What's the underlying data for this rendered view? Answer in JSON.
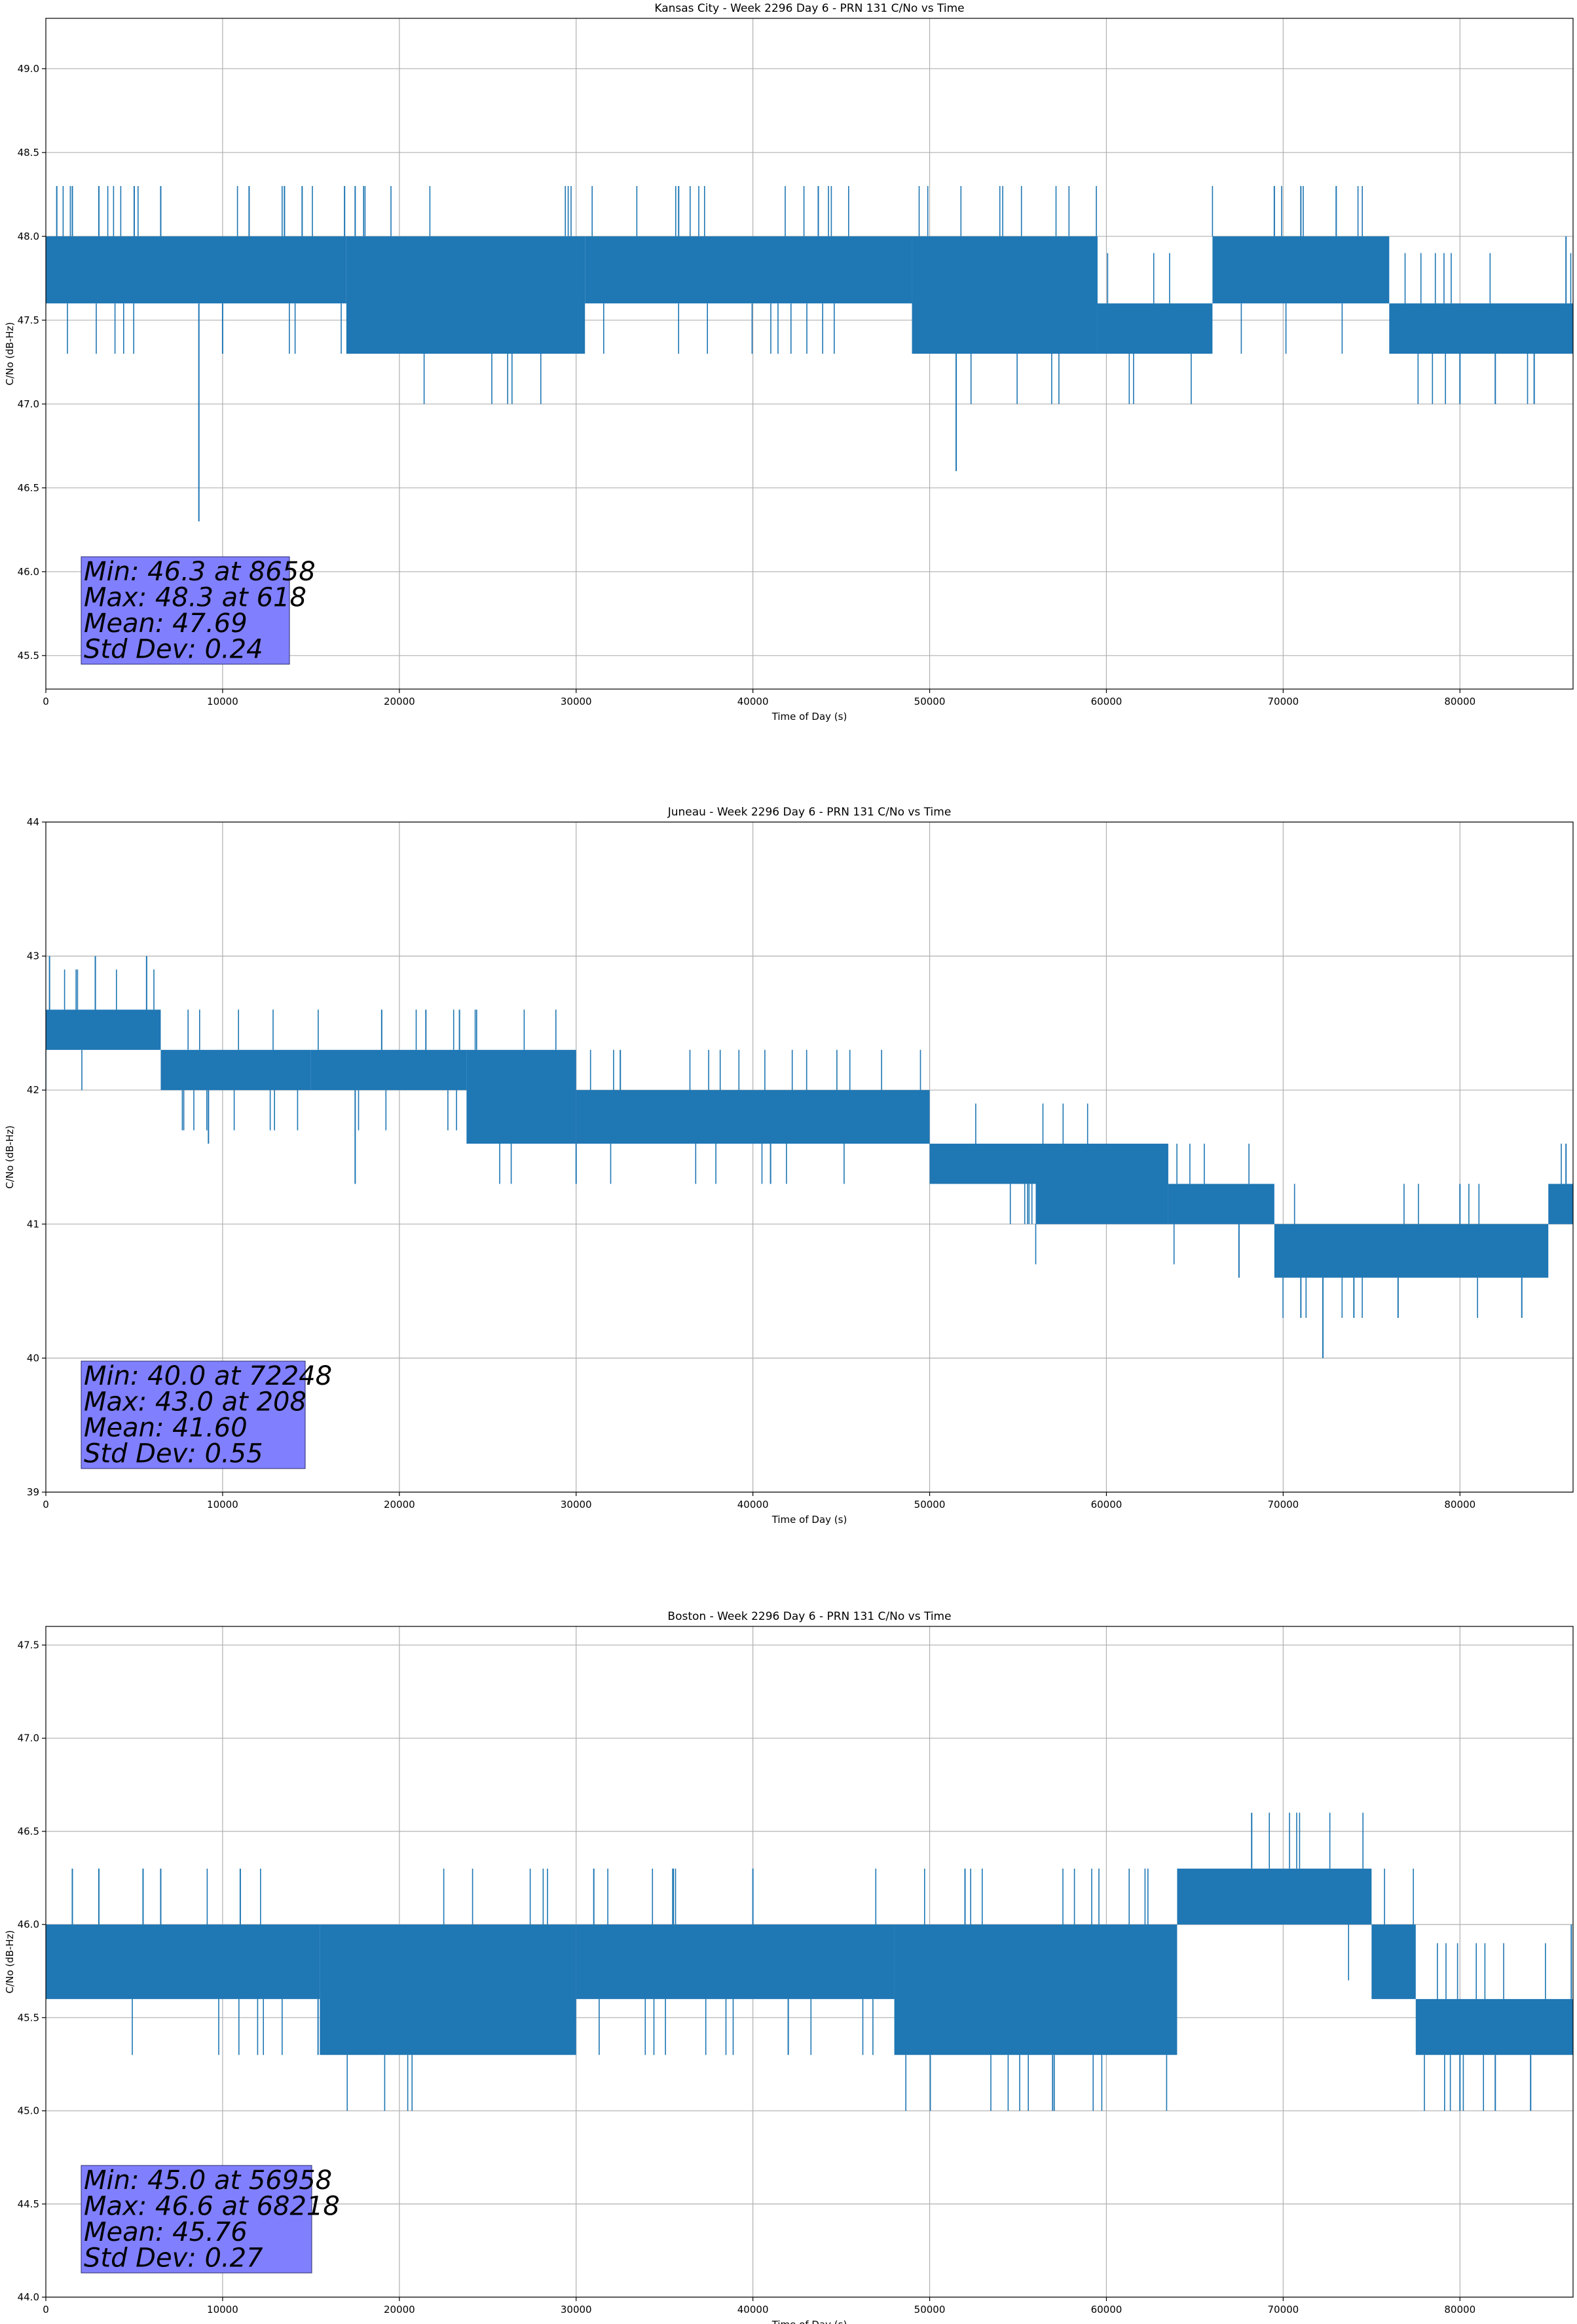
{
  "chart_data": [
    {
      "type": "line",
      "title": "Kansas City - Week 2296 Day 6 - PRN 131 C/No vs Time",
      "xlabel": "Time of Day (s)",
      "ylabel": "C/No (dB-Hz)",
      "xlim": [
        0,
        86400
      ],
      "ylim": [
        45.3,
        49.3
      ],
      "xticks": [
        0,
        10000,
        20000,
        30000,
        40000,
        50000,
        60000,
        70000,
        80000
      ],
      "yticks": [
        45.5,
        46.0,
        46.5,
        47.0,
        47.5,
        48.0,
        48.5,
        49.0
      ],
      "ytick_labels": [
        "45.5",
        "46.0",
        "46.5",
        "47.0",
        "47.5",
        "48.0",
        "48.5",
        "49.0"
      ],
      "grid": true,
      "line_color": "#1f77b4",
      "band_segments": [
        {
          "x": [
            0,
            17000
          ],
          "y": [
            47.6,
            48.0
          ]
        },
        {
          "x": [
            17000,
            30500
          ],
          "y": [
            47.3,
            48.0
          ]
        },
        {
          "x": [
            30500,
            49000
          ],
          "y": [
            47.6,
            48.0
          ]
        },
        {
          "x": [
            49000,
            59500
          ],
          "y": [
            47.3,
            48.0
          ]
        },
        {
          "x": [
            59500,
            66000
          ],
          "y": [
            47.3,
            47.6
          ]
        },
        {
          "x": [
            66000,
            76000
          ],
          "y": [
            47.6,
            48.0
          ]
        },
        {
          "x": [
            76000,
            86400
          ],
          "y": [
            47.3,
            47.6
          ]
        }
      ],
      "spikes": [
        {
          "x": 618,
          "y": 48.3
        },
        {
          "x": 1500,
          "y": 48.3
        },
        {
          "x": 3000,
          "y": 48.3
        },
        {
          "x": 5000,
          "y": 48.3
        },
        {
          "x": 6500,
          "y": 48.3
        },
        {
          "x": 8658,
          "y": 46.3
        },
        {
          "x": 10000,
          "y": 47.3
        },
        {
          "x": 11500,
          "y": 48.3
        },
        {
          "x": 13500,
          "y": 48.3
        },
        {
          "x": 14500,
          "y": 48.3
        },
        {
          "x": 16900,
          "y": 48.3
        },
        {
          "x": 17500,
          "y": 48.3
        },
        {
          "x": 35800,
          "y": 48.3
        },
        {
          "x": 43700,
          "y": 48.3
        },
        {
          "x": 51500,
          "y": 46.6
        },
        {
          "x": 69500,
          "y": 48.3
        },
        {
          "x": 71000,
          "y": 48.3
        },
        {
          "x": 73000,
          "y": 48.3
        },
        {
          "x": 80000,
          "y": 47.0
        },
        {
          "x": 82000,
          "y": 47.0
        },
        {
          "x": 84200,
          "y": 47.0
        },
        {
          "x": 86000,
          "y": 48.0
        }
      ],
      "stats": [
        "Min: 46.3 at 8658",
        "Max: 48.3 at 618",
        "Mean: 47.69",
        "Std Dev: 0.24"
      ]
    },
    {
      "type": "line",
      "title": "Juneau - Week 2296 Day 6 - PRN 131 C/No vs Time",
      "xlabel": "Time of Day (s)",
      "ylabel": "C/No (dB-Hz)",
      "xlim": [
        0,
        86400
      ],
      "ylim": [
        39,
        44
      ],
      "xticks": [
        0,
        10000,
        20000,
        30000,
        40000,
        50000,
        60000,
        70000,
        80000
      ],
      "yticks": [
        39,
        40,
        41,
        42,
        43,
        44
      ],
      "ytick_labels": [
        "39",
        "40",
        "41",
        "42",
        "43",
        "44"
      ],
      "grid": true,
      "line_color": "#1f77b4",
      "band_segments": [
        {
          "x": [
            0,
            6500
          ],
          "y": [
            42.3,
            42.6
          ]
        },
        {
          "x": [
            6500,
            15000
          ],
          "y": [
            42.0,
            42.3
          ]
        },
        {
          "x": [
            15000,
            23800
          ],
          "y": [
            42.0,
            42.3
          ]
        },
        {
          "x": [
            23800,
            30000
          ],
          "y": [
            41.6,
            42.3
          ]
        },
        {
          "x": [
            30000,
            50000
          ],
          "y": [
            41.6,
            42.0
          ]
        },
        {
          "x": [
            50000,
            56000
          ],
          "y": [
            41.3,
            41.6
          ]
        },
        {
          "x": [
            56000,
            63500
          ],
          "y": [
            41.0,
            41.6
          ]
        },
        {
          "x": [
            63500,
            69500
          ],
          "y": [
            41.0,
            41.3
          ]
        },
        {
          "x": [
            69500,
            85000
          ],
          "y": [
            40.6,
            41.0
          ]
        },
        {
          "x": [
            85000,
            86400
          ],
          "y": [
            41.0,
            41.3
          ]
        }
      ],
      "spikes": [
        {
          "x": 208,
          "y": 43.0
        },
        {
          "x": 2800,
          "y": 43.0
        },
        {
          "x": 5700,
          "y": 43.0
        },
        {
          "x": 9200,
          "y": 41.6
        },
        {
          "x": 17500,
          "y": 41.3
        },
        {
          "x": 19000,
          "y": 42.6
        },
        {
          "x": 21500,
          "y": 42.6
        },
        {
          "x": 23400,
          "y": 42.6
        },
        {
          "x": 30000,
          "y": 41.3
        },
        {
          "x": 32500,
          "y": 42.3
        },
        {
          "x": 41000,
          "y": 41.3
        },
        {
          "x": 53000,
          "y": 41.3
        },
        {
          "x": 57000,
          "y": 41.0
        },
        {
          "x": 67500,
          "y": 40.6
        },
        {
          "x": 71000,
          "y": 40.3
        },
        {
          "x": 72248,
          "y": 40.0
        },
        {
          "x": 74000,
          "y": 40.3
        },
        {
          "x": 76500,
          "y": 40.3
        },
        {
          "x": 80000,
          "y": 41.3
        },
        {
          "x": 83500,
          "y": 40.3
        },
        {
          "x": 86000,
          "y": 41.6
        }
      ],
      "stats": [
        "Min: 40.0 at 72248",
        "Max: 43.0 at 208",
        "Mean: 41.60",
        "Std Dev: 0.55"
      ]
    },
    {
      "type": "line",
      "title": "Boston - Week 2296 Day 6 - PRN 131 C/No vs Time",
      "xlabel": "Time of Day (s)",
      "ylabel": "C/No (dB-Hz)",
      "xlim": [
        0,
        86400
      ],
      "ylim": [
        44.0,
        47.6
      ],
      "xticks": [
        0,
        10000,
        20000,
        30000,
        40000,
        50000,
        60000,
        70000,
        80000
      ],
      "yticks": [
        44.0,
        44.5,
        45.0,
        45.5,
        46.0,
        46.5,
        47.0,
        47.5
      ],
      "ytick_labels": [
        "44.0",
        "44.5",
        "45.0",
        "45.5",
        "46.0",
        "46.5",
        "47.0",
        "47.5"
      ],
      "grid": true,
      "line_color": "#1f77b4",
      "band_segments": [
        {
          "x": [
            0,
            15500
          ],
          "y": [
            45.6,
            46.0
          ]
        },
        {
          "x": [
            15500,
            30000
          ],
          "y": [
            45.3,
            46.0
          ]
        },
        {
          "x": [
            30000,
            48000
          ],
          "y": [
            45.6,
            46.0
          ]
        },
        {
          "x": [
            48000,
            64000
          ],
          "y": [
            45.3,
            46.0
          ]
        },
        {
          "x": [
            64000,
            75000
          ],
          "y": [
            46.0,
            46.3
          ]
        },
        {
          "x": [
            75000,
            77500
          ],
          "y": [
            45.6,
            46.0
          ]
        },
        {
          "x": [
            77500,
            86400
          ],
          "y": [
            45.3,
            45.6
          ]
        }
      ],
      "spikes": [
        {
          "x": 1500,
          "y": 46.3
        },
        {
          "x": 3000,
          "y": 46.3
        },
        {
          "x": 5500,
          "y": 46.3
        },
        {
          "x": 6500,
          "y": 46.3
        },
        {
          "x": 11000,
          "y": 46.3
        },
        {
          "x": 15400,
          "y": 45.3
        },
        {
          "x": 31000,
          "y": 46.3
        },
        {
          "x": 35500,
          "y": 46.3
        },
        {
          "x": 40000,
          "y": 46.3
        },
        {
          "x": 42000,
          "y": 45.3
        },
        {
          "x": 52000,
          "y": 46.3
        },
        {
          "x": 56958,
          "y": 45.0
        },
        {
          "x": 68218,
          "y": 46.6
        },
        {
          "x": 80000,
          "y": 45.0
        },
        {
          "x": 82000,
          "y": 45.0
        },
        {
          "x": 84000,
          "y": 45.0
        },
        {
          "x": 86300,
          "y": 46.0
        }
      ],
      "stats": [
        "Min: 45.0 at 56958",
        "Max: 46.6 at 68218",
        "Mean: 45.76",
        "Std Dev: 0.27"
      ]
    }
  ]
}
